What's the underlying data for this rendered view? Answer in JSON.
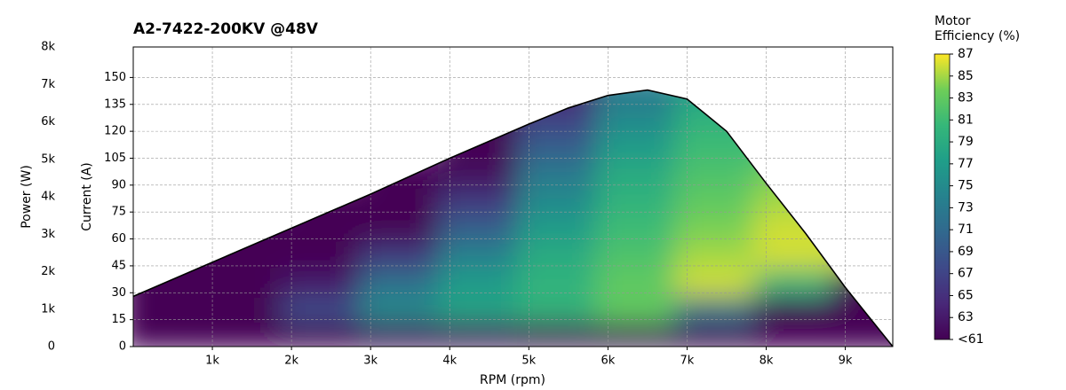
{
  "chart_data": {
    "type": "heatmap",
    "title": "A2-7422-200KV @48V",
    "x_label": "RPM (rpm)",
    "y_label": "Current (A)",
    "y2_label": "Power (W)",
    "colorbar_label": "Motor Efficiency (%)",
    "colormap": "viridis",
    "grid": true,
    "xlim": [
      0,
      9600
    ],
    "xticks": [
      {
        "value": 1000,
        "label": "1k"
      },
      {
        "value": 2000,
        "label": "2k"
      },
      {
        "value": 3000,
        "label": "3k"
      },
      {
        "value": 4000,
        "label": "4k"
      },
      {
        "value": 5000,
        "label": "5k"
      },
      {
        "value": 6000,
        "label": "6k"
      },
      {
        "value": 7000,
        "label": "7k"
      },
      {
        "value": 8000,
        "label": "8k"
      },
      {
        "value": 9000,
        "label": "9k"
      }
    ],
    "ylim": [
      0,
      167
    ],
    "yticks": [
      0,
      15,
      30,
      45,
      60,
      75,
      90,
      105,
      120,
      135,
      150
    ],
    "y2lim": [
      0,
      8000
    ],
    "y2ticks": [
      0,
      {
        "value": 1000,
        "label": "1k"
      },
      {
        "value": 2000,
        "label": "2k"
      },
      {
        "value": 3000,
        "label": "3k"
      },
      {
        "value": 4000,
        "label": "4k"
      },
      {
        "value": 5000,
        "label": "5k"
      },
      {
        "value": 6000,
        "label": "6k"
      },
      {
        "value": 7000,
        "label": "7k"
      },
      {
        "value": 8000,
        "label": "8k"
      }
    ],
    "zlim": [
      61,
      87
    ],
    "zticks": [
      {
        "value": 61,
        "label": "<61"
      },
      63,
      65,
      67,
      69,
      71,
      73,
      75,
      77,
      79,
      81,
      83,
      85,
      87
    ],
    "boundary": {
      "color": "#000000",
      "x": [
        0,
        1000,
        2000,
        3000,
        4000,
        5000,
        5500,
        6000,
        6500,
        7000,
        7500,
        8000,
        8500,
        9000,
        9600
      ],
      "y": [
        28,
        47,
        66,
        85,
        105,
        124,
        133,
        140,
        143,
        138,
        120,
        91,
        63,
        33,
        0
      ]
    },
    "x": [
      500,
      1500,
      2500,
      3500,
      4500,
      5500,
      6500,
      7500,
      8500,
      9500
    ],
    "y": [
      7.5,
      22.5,
      37.5,
      52.5,
      67.5,
      82.5,
      97.5,
      112.5,
      127.5,
      142.5
    ],
    "z": [
      [
        58,
        58,
        60,
        62,
        62,
        61,
        60,
        59,
        58,
        58
      ],
      [
        58,
        58,
        68,
        75,
        78,
        80,
        83,
        72,
        60,
        58
      ],
      [
        58,
        58,
        63,
        72,
        77,
        80,
        83,
        86,
        80,
        58
      ],
      [
        58,
        58,
        58,
        66,
        74,
        79,
        82,
        85,
        86,
        null
      ],
      [
        null,
        58,
        58,
        61,
        70,
        77,
        81,
        84,
        86,
        null
      ],
      [
        null,
        null,
        58,
        58,
        66,
        75,
        80,
        83,
        85,
        null
      ],
      [
        null,
        null,
        null,
        58,
        62,
        73,
        79,
        82,
        84,
        null
      ],
      [
        null,
        null,
        null,
        null,
        59,
        70,
        77,
        81,
        null,
        null
      ],
      [
        null,
        null,
        null,
        null,
        58,
        67,
        75,
        80,
        null,
        null
      ],
      [
        null,
        null,
        null,
        null,
        null,
        64,
        73,
        78,
        null,
        null
      ]
    ]
  }
}
